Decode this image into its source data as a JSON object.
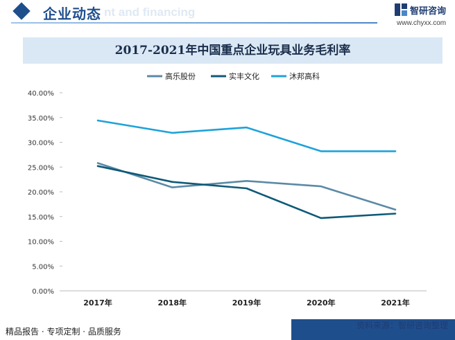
{
  "header": {
    "title": "企业动态",
    "watermark": "nt and financing",
    "logo_name": "智研咨询",
    "logo_url": "www.chyxx.com"
  },
  "footer": {
    "left": "精品报告 · 专项定制 · 品质服务",
    "right": "资料来源：智研咨询整理"
  },
  "colors": {
    "brand": "#1f4e8c",
    "title_band": "#dae8f5"
  },
  "chart_data": {
    "type": "line",
    "title": "2017-2021年中国重点企业玩具业务毛利率",
    "categories": [
      "2017年",
      "2018年",
      "2019年",
      "2020年",
      "2021年"
    ],
    "ylim": [
      0,
      40
    ],
    "yticks": [
      "0.00%",
      "5.00%",
      "10.00%",
      "15.00%",
      "20.00%",
      "25.00%",
      "30.00%",
      "35.00%",
      "40.00%"
    ],
    "grid": false,
    "legend_position": "top-center",
    "series": [
      {
        "name": "高乐股份",
        "color": "#5b8aa6",
        "values": [
          25.8,
          20.9,
          22.2,
          21.1,
          16.4
        ]
      },
      {
        "name": "实丰文化",
        "color": "#0e5a78",
        "values": [
          25.2,
          22.0,
          20.7,
          14.7,
          15.6
        ]
      },
      {
        "name": "沐邦高科",
        "color": "#1ea2d9",
        "values": [
          34.4,
          31.9,
          33.0,
          28.2,
          28.2
        ]
      }
    ]
  }
}
